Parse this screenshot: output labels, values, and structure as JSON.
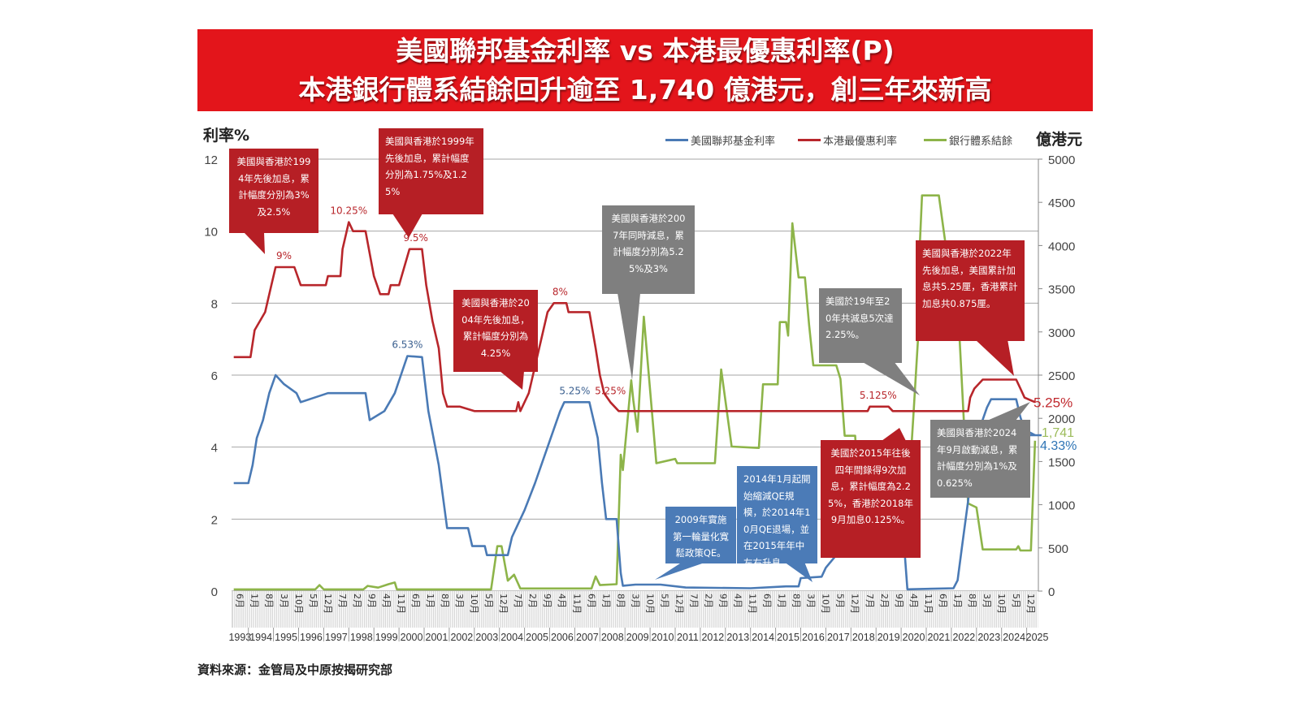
{
  "title": {
    "line1": "美國聯邦基金利率  vs  本港最優惠利率(P)",
    "line2": "本港銀行體系結餘回升逾至 1,740 億港元，創三年來新高"
  },
  "source": "資料來源：金管局及中原按揭研究部",
  "chart_data": {
    "type": "line",
    "title": "美國聯邦基金利率  vs  本港最優惠利率(P)",
    "ylabel": "利率%",
    "y2label": "億港元",
    "ylim": [
      0,
      12
    ],
    "y2lim": [
      0,
      5000
    ],
    "y_ticks": [
      "0",
      "2",
      "4",
      "6",
      "8",
      "10",
      "12"
    ],
    "y2_ticks": [
      "0",
      "500",
      "1000",
      "1500",
      "2000",
      "2500",
      "3000",
      "3500",
      "4000",
      "4500",
      "5000"
    ],
    "grid": true,
    "legend_position": "top-right",
    "x_month_labels": [
      "6月",
      "1月",
      "8月",
      "3月",
      "10月",
      "5月",
      "12月",
      "7月",
      "2月",
      "9月",
      "4月",
      "11月",
      "6月",
      "1月",
      "8月",
      "3月",
      "10月",
      "5月",
      "12月",
      "7月",
      "2月",
      "9月",
      "4月",
      "11月",
      "6月",
      "1月",
      "8月",
      "3月",
      "10月",
      "5月",
      "12月",
      "7月",
      "2月",
      "9月",
      "4月",
      "11月",
      "6月",
      "1月",
      "8月",
      "3月",
      "10月",
      "5月",
      "12月",
      "7月",
      "2月",
      "9月",
      "4月",
      "11月",
      "6月",
      "1月",
      "8月",
      "3月",
      "10月",
      "5月",
      "12月"
    ],
    "x_year_labels": [
      "1993",
      "1994",
      "1995",
      "1996",
      "1997",
      "1998",
      "1999",
      "2000",
      "2001",
      "2002",
      "2003",
      "2004",
      "2005",
      "2006",
      "2007",
      "2008",
      "2009",
      "2010",
      "2011",
      "2012",
      "2013",
      "2014",
      "2015",
      "2016",
      "2017",
      "2018",
      "2019",
      "2020",
      "2021",
      "2022",
      "2023",
      "2024",
      "2025"
    ],
    "series": [
      {
        "name": "美國聯邦基金利率",
        "axis": "left",
        "color": "#4a7ab5",
        "points": [
          [
            "1993-06",
            3.0
          ],
          [
            "1994-01",
            3.0
          ],
          [
            "1994-03",
            3.5
          ],
          [
            "1994-05",
            4.25
          ],
          [
            "1994-08",
            4.75
          ],
          [
            "1994-11",
            5.5
          ],
          [
            "1995-02",
            6.0
          ],
          [
            "1995-06",
            5.75
          ],
          [
            "1995-12",
            5.5
          ],
          [
            "1996-02",
            5.25
          ],
          [
            "1997-03",
            5.5
          ],
          [
            "1998-09",
            5.5
          ],
          [
            "1998-11",
            4.75
          ],
          [
            "1999-06",
            5.0
          ],
          [
            "1999-11",
            5.5
          ],
          [
            "2000-05",
            6.53
          ],
          [
            "2000-12",
            6.5
          ],
          [
            "2001-03",
            5.0
          ],
          [
            "2001-08",
            3.5
          ],
          [
            "2001-12",
            1.75
          ],
          [
            "2002-10",
            1.75
          ],
          [
            "2002-12",
            1.25
          ],
          [
            "2003-06",
            1.25
          ],
          [
            "2003-07",
            1.0
          ],
          [
            "2004-05",
            1.0
          ],
          [
            "2004-07",
            1.5
          ],
          [
            "2005-01",
            2.25
          ],
          [
            "2005-06",
            3.0
          ],
          [
            "2005-12",
            4.0
          ],
          [
            "2006-06",
            5.0
          ],
          [
            "2006-08",
            5.25
          ],
          [
            "2007-08",
            5.25
          ],
          [
            "2007-12",
            4.25
          ],
          [
            "2008-02",
            3.0
          ],
          [
            "2008-04",
            2.0
          ],
          [
            "2008-09",
            2.0
          ],
          [
            "2008-11",
            0.5
          ],
          [
            "2008-12",
            0.15
          ],
          [
            "2009-06",
            0.18
          ],
          [
            "2010-06",
            0.18
          ],
          [
            "2011-06",
            0.1
          ],
          [
            "2014-01",
            0.08
          ],
          [
            "2015-06",
            0.13
          ],
          [
            "2015-12",
            0.13
          ],
          [
            "2016-01",
            0.36
          ],
          [
            "2016-11",
            0.4
          ],
          [
            "2017-01",
            0.65
          ],
          [
            "2017-06",
            1.0
          ],
          [
            "2017-12",
            1.3
          ],
          [
            "2018-06",
            1.8
          ],
          [
            "2018-12",
            2.3
          ],
          [
            "2019-06",
            2.4
          ],
          [
            "2019-08",
            2.1
          ],
          [
            "2019-11",
            1.55
          ],
          [
            "2020-02",
            1.6
          ],
          [
            "2020-04",
            0.05
          ],
          [
            "2022-02",
            0.08
          ],
          [
            "2022-04",
            0.3
          ],
          [
            "2022-06",
            1.2
          ],
          [
            "2022-09",
            2.5
          ],
          [
            "2022-12",
            4.1
          ],
          [
            "2023-03",
            4.6
          ],
          [
            "2023-06",
            5.1
          ],
          [
            "2023-08",
            5.33
          ],
          [
            "2024-08",
            5.33
          ],
          [
            "2024-10",
            4.83
          ],
          [
            "2024-12",
            4.48
          ],
          [
            "2025-05",
            4.33
          ]
        ]
      },
      {
        "name": "本港最優惠利率",
        "axis": "left",
        "color": "#b8262b",
        "points": [
          [
            "1993-06",
            6.5
          ],
          [
            "1994-02",
            6.5
          ],
          [
            "1994-04",
            7.25
          ],
          [
            "1994-09",
            7.75
          ],
          [
            "1994-12",
            8.5
          ],
          [
            "1995-02",
            9.0
          ],
          [
            "1995-11",
            9.0
          ],
          [
            "1996-02",
            8.5
          ],
          [
            "1997-02",
            8.5
          ],
          [
            "1997-03",
            8.75
          ],
          [
            "1997-09",
            8.75
          ],
          [
            "1997-10",
            9.5
          ],
          [
            "1998-01",
            10.25
          ],
          [
            "1998-03",
            10.0
          ],
          [
            "1998-09",
            10.0
          ],
          [
            "1999-01",
            8.75
          ],
          [
            "1999-04",
            8.25
          ],
          [
            "1999-08",
            8.25
          ],
          [
            "1999-09",
            8.5
          ],
          [
            "2000-01",
            8.5
          ],
          [
            "2000-06",
            9.5
          ],
          [
            "2000-12",
            9.5
          ],
          [
            "2001-02",
            8.5
          ],
          [
            "2001-05",
            7.5
          ],
          [
            "2001-08",
            6.75
          ],
          [
            "2001-10",
            5.5
          ],
          [
            "2001-12",
            5.125
          ],
          [
            "2002-06",
            5.125
          ],
          [
            "2003-01",
            5.0
          ],
          [
            "2004-09",
            5.0
          ],
          [
            "2004-10",
            5.25
          ],
          [
            "2004-11",
            5.0
          ],
          [
            "2005-03",
            5.5
          ],
          [
            "2005-06",
            6.25
          ],
          [
            "2005-09",
            7.0
          ],
          [
            "2005-12",
            7.75
          ],
          [
            "2006-03",
            8.0
          ],
          [
            "2006-09",
            8.0
          ],
          [
            "2006-10",
            7.75
          ],
          [
            "2007-08",
            7.75
          ],
          [
            "2007-11",
            6.75
          ],
          [
            "2008-01",
            6.0
          ],
          [
            "2008-03",
            5.5
          ],
          [
            "2008-06",
            5.25
          ],
          [
            "2008-10",
            5.0
          ],
          [
            "2018-09",
            5.0
          ],
          [
            "2018-10",
            5.125
          ],
          [
            "2019-07",
            5.125
          ],
          [
            "2019-09",
            5.0
          ],
          [
            "2022-09",
            5.0
          ],
          [
            "2022-10",
            5.375
          ],
          [
            "2022-12",
            5.625
          ],
          [
            "2023-04",
            5.875
          ],
          [
            "2024-08",
            5.875
          ],
          [
            "2024-10",
            5.625
          ],
          [
            "2024-12",
            5.375
          ],
          [
            "2025-05",
            5.25
          ]
        ]
      },
      {
        "name": "銀行體系結餘",
        "axis": "right",
        "color": "#8db449",
        "points": [
          [
            "1993-06",
            20
          ],
          [
            "1996-09",
            20
          ],
          [
            "1996-11",
            70
          ],
          [
            "1997-01",
            20
          ],
          [
            "1998-08",
            20
          ],
          [
            "1998-10",
            60
          ],
          [
            "1999-03",
            40
          ],
          [
            "1999-08",
            80
          ],
          [
            "1999-11",
            100
          ],
          [
            "1999-12",
            20
          ],
          [
            "2003-09",
            20
          ],
          [
            "2003-12",
            520
          ],
          [
            "2004-02",
            520
          ],
          [
            "2004-05",
            120
          ],
          [
            "2004-08",
            190
          ],
          [
            "2004-11",
            30
          ],
          [
            "2007-09",
            30
          ],
          [
            "2007-11",
            170
          ],
          [
            "2008-01",
            70
          ],
          [
            "2008-09",
            80
          ],
          [
            "2008-11",
            1579
          ],
          [
            "2008-12",
            1400
          ],
          [
            "2009-04",
            2440
          ],
          [
            "2009-05",
            2206
          ],
          [
            "2009-07",
            1845
          ],
          [
            "2009-10",
            3177
          ],
          [
            "2010-04",
            1480
          ],
          [
            "2011-01",
            1530
          ],
          [
            "2011-02",
            1480
          ],
          [
            "2012-08",
            1480
          ],
          [
            "2012-11",
            2566
          ],
          [
            "2013-04",
            1673
          ],
          [
            "2014-05",
            1657
          ],
          [
            "2014-07",
            2394
          ],
          [
            "2015-02",
            2394
          ],
          [
            "2015-03",
            3114
          ],
          [
            "2015-06",
            3114
          ],
          [
            "2015-07",
            2958
          ],
          [
            "2015-09",
            4258
          ],
          [
            "2015-12",
            3631
          ],
          [
            "2016-03",
            3631
          ],
          [
            "2016-05",
            3083
          ],
          [
            "2016-07",
            2613
          ],
          [
            "2017-06",
            2613
          ],
          [
            "2017-08",
            2456
          ],
          [
            "2017-10",
            1798
          ],
          [
            "2018-03",
            1798
          ],
          [
            "2018-05",
            1000
          ],
          [
            "2018-08",
            780
          ],
          [
            "2019-03",
            540
          ],
          [
            "2020-03",
            540
          ],
          [
            "2020-07",
            2080
          ],
          [
            "2020-09",
            2895
          ],
          [
            "2020-10",
            4054
          ],
          [
            "2020-11",
            4580
          ],
          [
            "2021-07",
            4580
          ],
          [
            "2021-10",
            4054
          ],
          [
            "2022-05",
            2895
          ],
          [
            "2022-09",
            1015
          ],
          [
            "2023-01",
            968
          ],
          [
            "2023-04",
            482
          ],
          [
            "2024-08",
            482
          ],
          [
            "2024-09",
            520
          ],
          [
            "2024-10",
            470
          ],
          [
            "2025-03",
            470
          ],
          [
            "2025-05",
            1741
          ]
        ]
      }
    ],
    "data_labels": [
      {
        "text": "9%",
        "series": 1,
        "date": "1995-06",
        "value": 9.0
      },
      {
        "text": "10.25%",
        "series": 1,
        "date": "1998-01",
        "value": 10.25
      },
      {
        "text": "9.5%",
        "series": 1,
        "date": "2000-09",
        "value": 9.5
      },
      {
        "text": "6.53%",
        "series": 0,
        "date": "2000-05",
        "value": 6.53
      },
      {
        "text": "8%",
        "series": 1,
        "date": "2006-06",
        "value": 8.0
      },
      {
        "text": "5.25%",
        "series": 0,
        "date": "2007-01",
        "value": 5.25
      },
      {
        "text": "5.25%",
        "series": 1,
        "date": "2008-06",
        "value": 5.25
      },
      {
        "text": "5.125%",
        "series": 1,
        "date": "2019-02",
        "value": 5.125
      }
    ],
    "end_labels": {
      "prime": "5.25%",
      "balance": "1,741",
      "fed": "4.33%"
    },
    "annotations": [
      "美國與香港於1994年先後加息，累計幅度分別為3%及2.5%",
      "美國與香港於1999年先後加息，累計幅度分別為1.75%及1.25%",
      "美國與香港於2004年先後加息，累計幅度分別為4.25%",
      "美國與香港於2007年同時減息，累計幅度分別為5.25%及3%",
      "美國於19年至20年共減息5次達2.25%。",
      "美國與香港於2022年先後加息，美國累計加息共5.25厘，香港累計加息共0.875厘。",
      "2009年實施第一輪量化寬鬆政策QE。",
      "2014年1月起開始縮減QE規模，於2014年10月QE退場，並在2015年年中左右升息。",
      "美國於2015年往後四年間錄得9次加息，累計幅度為2.25%，香港於2018年9月加息0.125%。",
      "美國與香港於2024年9月啟動減息，累計幅度分別為1%及0.625%"
    ]
  }
}
